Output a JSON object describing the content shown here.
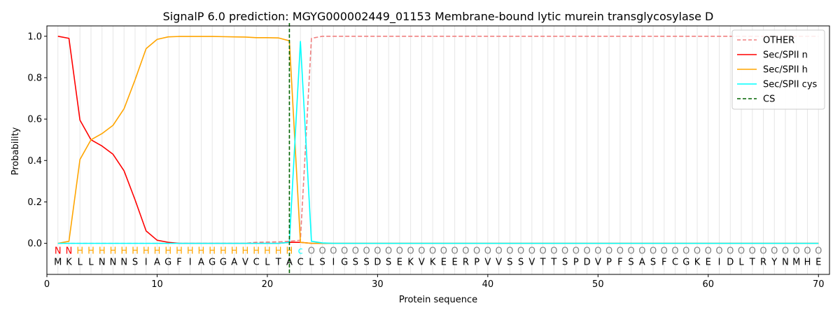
{
  "chart_data": {
    "type": "line",
    "title": "SignalP 6.0 prediction: MGYG000002449_01153 Membrane-bound lytic murein transglycosylase D",
    "xlabel": "Protein sequence",
    "ylabel": "Probability",
    "xlim": [
      0,
      71
    ],
    "ylim": [
      -0.15,
      1.05
    ],
    "xticks": [
      0,
      10,
      20,
      30,
      40,
      50,
      60,
      70
    ],
    "yticks": [
      0.0,
      0.2,
      0.4,
      0.6,
      0.8,
      1.0
    ],
    "ytick_labels": [
      "0.0",
      "0.2",
      "0.4",
      "0.6",
      "0.8",
      "1.0"
    ],
    "x": [
      1,
      2,
      3,
      4,
      5,
      6,
      7,
      8,
      9,
      10,
      11,
      12,
      13,
      14,
      15,
      16,
      17,
      18,
      19,
      20,
      21,
      22,
      23,
      24,
      25,
      26,
      27,
      28,
      29,
      30,
      31,
      32,
      33,
      34,
      35,
      36,
      37,
      38,
      39,
      40,
      41,
      42,
      43,
      44,
      45,
      46,
      47,
      48,
      49,
      50,
      51,
      52,
      53,
      54,
      55,
      56,
      57,
      58,
      59,
      60,
      61,
      62,
      63,
      64,
      65,
      66,
      67,
      68,
      69,
      70
    ],
    "series": [
      {
        "name": "OTHER",
        "color": "#f08080",
        "dash": "dashed",
        "values": [
          0,
          0,
          0,
          0,
          0,
          0,
          0,
          0,
          0,
          0,
          0,
          0,
          0,
          0,
          0,
          0,
          0,
          0,
          0.005,
          0.006,
          0.007,
          0.01,
          0.015,
          0.99,
          1,
          1,
          1,
          1,
          1,
          1,
          1,
          1,
          1,
          1,
          1,
          1,
          1,
          1,
          1,
          1,
          1,
          1,
          1,
          1,
          1,
          1,
          1,
          1,
          1,
          1,
          1,
          1,
          1,
          1,
          1,
          1,
          1,
          1,
          1,
          1,
          1,
          1,
          1,
          1,
          1,
          1,
          1,
          1,
          1,
          1
        ]
      },
      {
        "name": "Sec/SPII n",
        "color": "#ff0000",
        "dash": "solid",
        "values": [
          1,
          0.99,
          0.595,
          0.5,
          0.47,
          0.43,
          0.35,
          0.21,
          0.06,
          0.015,
          0.005,
          0,
          0,
          0,
          0,
          0,
          0,
          0,
          0,
          0,
          0,
          0.005,
          0.005,
          0,
          0,
          0,
          0,
          0,
          0,
          0,
          0,
          0,
          0,
          0,
          0,
          0,
          0,
          0,
          0,
          0,
          0,
          0,
          0,
          0,
          0,
          0,
          0,
          0,
          0,
          0,
          0,
          0,
          0,
          0,
          0,
          0,
          0,
          0,
          0,
          0,
          0,
          0,
          0,
          0,
          0,
          0,
          0,
          0,
          0,
          0
        ]
      },
      {
        "name": "Sec/SPII h",
        "color": "#ffa500",
        "dash": "solid",
        "values": [
          0,
          0.01,
          0.405,
          0.5,
          0.53,
          0.57,
          0.65,
          0.79,
          0.94,
          0.985,
          0.997,
          0.999,
          0.999,
          0.999,
          0.999,
          0.998,
          0.997,
          0.996,
          0.993,
          0.993,
          0.992,
          0.978,
          0.005,
          0,
          0,
          0,
          0,
          0,
          0,
          0,
          0,
          0,
          0,
          0,
          0,
          0,
          0,
          0,
          0,
          0,
          0,
          0,
          0,
          0,
          0,
          0,
          0,
          0,
          0,
          0,
          0,
          0,
          0,
          0,
          0,
          0,
          0,
          0,
          0,
          0,
          0,
          0,
          0,
          0,
          0,
          0,
          0,
          0,
          0,
          0
        ]
      },
      {
        "name": "Sec/SPII cys",
        "color": "#00ffff",
        "dash": "solid",
        "values": [
          0,
          0,
          0,
          0,
          0,
          0,
          0,
          0,
          0,
          0,
          0,
          0,
          0,
          0,
          0,
          0,
          0,
          0,
          0,
          0,
          0,
          0.005,
          0.975,
          0.01,
          0.002,
          0,
          0,
          0,
          0,
          0,
          0,
          0,
          0,
          0,
          0,
          0,
          0,
          0,
          0,
          0,
          0,
          0,
          0,
          0,
          0,
          0,
          0,
          0,
          0,
          0,
          0,
          0,
          0,
          0,
          0,
          0,
          0,
          0,
          0,
          0,
          0,
          0,
          0,
          0,
          0,
          0,
          0,
          0,
          0,
          0
        ]
      }
    ],
    "cs": {
      "name": "CS",
      "x": 22,
      "color": "#006400"
    },
    "label_row": [
      "N",
      "N",
      "H",
      "H",
      "H",
      "H",
      "H",
      "H",
      "H",
      "H",
      "H",
      "H",
      "H",
      "H",
      "H",
      "H",
      "H",
      "H",
      "H",
      "H",
      "H",
      "H",
      "C",
      "O",
      "O",
      "O",
      "O",
      "O",
      "O",
      "O",
      "O",
      "O",
      "O",
      "O",
      "O",
      "O",
      "O",
      "O",
      "O",
      "O",
      "O",
      "O",
      "O",
      "O",
      "O",
      "O",
      "O",
      "O",
      "O",
      "O",
      "O",
      "O",
      "O",
      "O",
      "O",
      "O",
      "O",
      "O",
      "O",
      "O",
      "O",
      "O",
      "O",
      "O",
      "O",
      "O",
      "O",
      "O",
      "O",
      "O"
    ],
    "label_colors": {
      "N": "#ff0000",
      "H": "#ffa500",
      "C": "#00ffff",
      "O": "#808080"
    },
    "sequence": [
      "M",
      "K",
      "L",
      "L",
      "N",
      "N",
      "N",
      "S",
      "I",
      "A",
      "G",
      "F",
      "I",
      "A",
      "G",
      "G",
      "A",
      "V",
      "C",
      "L",
      "T",
      "A",
      "C",
      "L",
      "S",
      "I",
      "G",
      "S",
      "S",
      "D",
      "S",
      "E",
      "K",
      "V",
      "K",
      "E",
      "E",
      "R",
      "P",
      "V",
      "V",
      "S",
      "S",
      "V",
      "T",
      "T",
      "S",
      "P",
      "D",
      "V",
      "P",
      "F",
      "S",
      "A",
      "S",
      "F",
      "C",
      "G",
      "K",
      "E",
      "I",
      "D",
      "L",
      "T",
      "R",
      "Y",
      "N",
      "M",
      "H",
      "E"
    ],
    "legend_position": "top-right",
    "grid": "vertical lines at each residue"
  }
}
